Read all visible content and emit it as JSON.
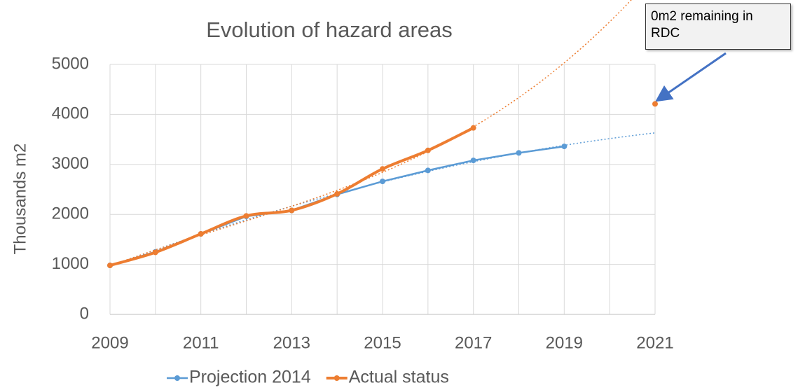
{
  "chart_data": {
    "type": "line",
    "title": "Evolution of hazard areas",
    "ylabel": "Thousands m2",
    "xlim": [
      2009,
      2021
    ],
    "xticks": [
      2009,
      2011,
      2013,
      2015,
      2017,
      2019,
      2021
    ],
    "x_grid_step": 1,
    "ylim": [
      0,
      5000
    ],
    "yticks": [
      0,
      1000,
      2000,
      3000,
      4000,
      5000
    ],
    "grid": true,
    "legend": "bottom",
    "series": [
      {
        "name": "Projection 2014",
        "color": "#5b9bd5",
        "smooth": false,
        "trendline_degree": 2,
        "x": [
          2009,
          2010,
          2011,
          2012,
          2013,
          2014,
          2015,
          2016,
          2017,
          2018,
          2019
        ],
        "values": [
          980,
          1250,
          1610,
          1960,
          2080,
          2400,
          2660,
          2880,
          3080,
          3230,
          3360
        ]
      },
      {
        "name": "Actual status",
        "color": "#ed7d31",
        "smooth": true,
        "trendline_degree": 3,
        "x": [
          2009,
          2010,
          2011,
          2012,
          2013,
          2014,
          2015,
          2016,
          2017
        ],
        "values": [
          980,
          1240,
          1610,
          1970,
          2080,
          2410,
          2910,
          3280,
          3730
        ]
      }
    ],
    "annotation": {
      "text": "0m2  remaining in RDC",
      "x": 2021,
      "y": 4210,
      "color": "#ed7d31"
    }
  }
}
